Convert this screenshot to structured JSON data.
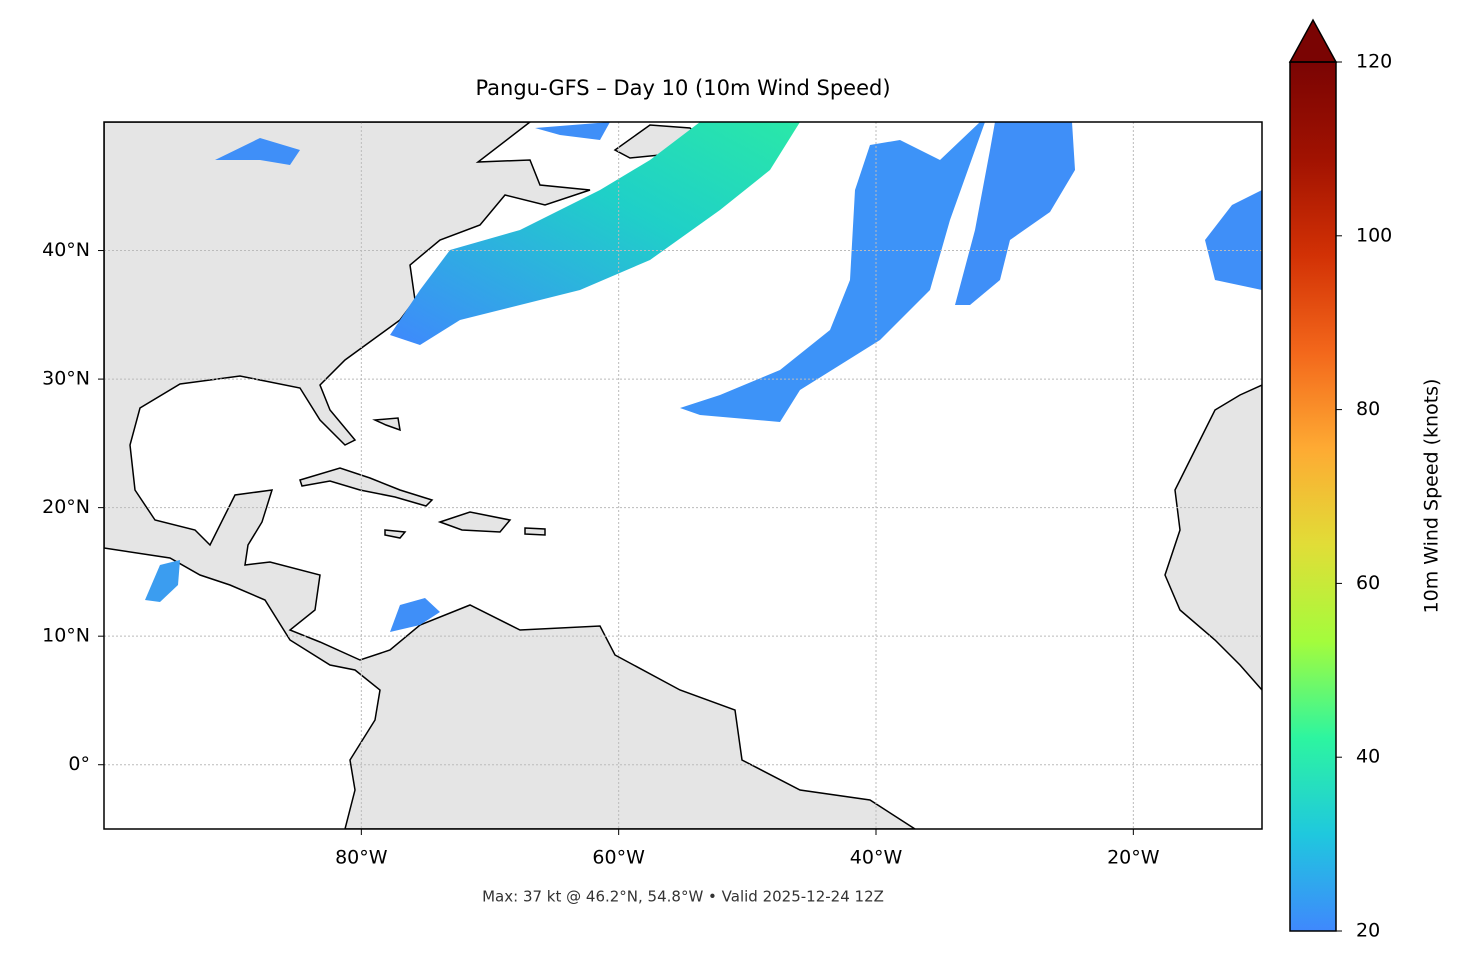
{
  "chart_data": {
    "type": "map",
    "title": "Pangu-GFS – Day 10 (10m Wind Speed)",
    "footer": "Max: 37 kt @ 46.2°N, 54.8°W • Valid 2025-12-24 12Z",
    "xlim": [
      -100,
      -10
    ],
    "ylim": [
      -5,
      50
    ],
    "xticks": [
      {
        "value": -80,
        "label": "80°W"
      },
      {
        "value": -60,
        "label": "60°W"
      },
      {
        "value": -40,
        "label": "40°W"
      },
      {
        "value": -20,
        "label": "20°W"
      }
    ],
    "yticks": [
      {
        "value": 0,
        "label": "0°"
      },
      {
        "value": 10,
        "label": "10°N"
      },
      {
        "value": 20,
        "label": "20°N"
      },
      {
        "value": 30,
        "label": "30°N"
      },
      {
        "value": 40,
        "label": "40°N"
      }
    ],
    "grid": true,
    "colorbar": {
      "label": "10m Wind Speed (knots)",
      "lim": [
        20,
        120
      ],
      "ticks": [
        20,
        40,
        60,
        80,
        100,
        120
      ],
      "extend": "max",
      "colors": [
        "#3f88fd",
        "#1fc8de",
        "#2df5a0",
        "#a4fc3c",
        "#e1dd37",
        "#feaa33",
        "#f3671b",
        "#d23105",
        "#a11201",
        "#7a0403"
      ]
    }
  }
}
